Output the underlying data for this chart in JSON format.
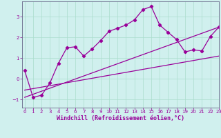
{
  "xlabel": "Windchill (Refroidissement éolien,°C)",
  "bg_color": "#d0f0ee",
  "line_color": "#990099",
  "grid_color": "#aaddcc",
  "curve_x": [
    0,
    1,
    2,
    3,
    4,
    5,
    6,
    7,
    8,
    9,
    10,
    11,
    12,
    13,
    14,
    15,
    16,
    17,
    18,
    19,
    20,
    21,
    22,
    23
  ],
  "curve_y": [
    0.4,
    -0.9,
    -0.8,
    -0.2,
    0.75,
    1.5,
    1.55,
    1.1,
    1.45,
    1.85,
    2.3,
    2.45,
    2.6,
    2.85,
    3.35,
    3.5,
    2.6,
    2.25,
    1.9,
    1.3,
    1.4,
    1.35,
    2.05,
    2.5
  ],
  "line1_x": [
    0,
    23
  ],
  "line1_y": [
    -0.9,
    2.5
  ],
  "line2_x": [
    0,
    23
  ],
  "line2_y": [
    -0.55,
    1.1
  ],
  "ylim": [
    -1.4,
    3.75
  ],
  "xlim": [
    -0.3,
    23
  ],
  "yticks": [
    -1,
    0,
    1,
    2,
    3
  ],
  "xticks": [
    0,
    1,
    2,
    3,
    4,
    5,
    6,
    7,
    8,
    9,
    10,
    11,
    12,
    13,
    14,
    15,
    16,
    17,
    18,
    19,
    20,
    21,
    22,
    23
  ],
  "tick_fontsize": 5.0,
  "xlabel_fontsize": 6.0,
  "axis_color": "#666688"
}
